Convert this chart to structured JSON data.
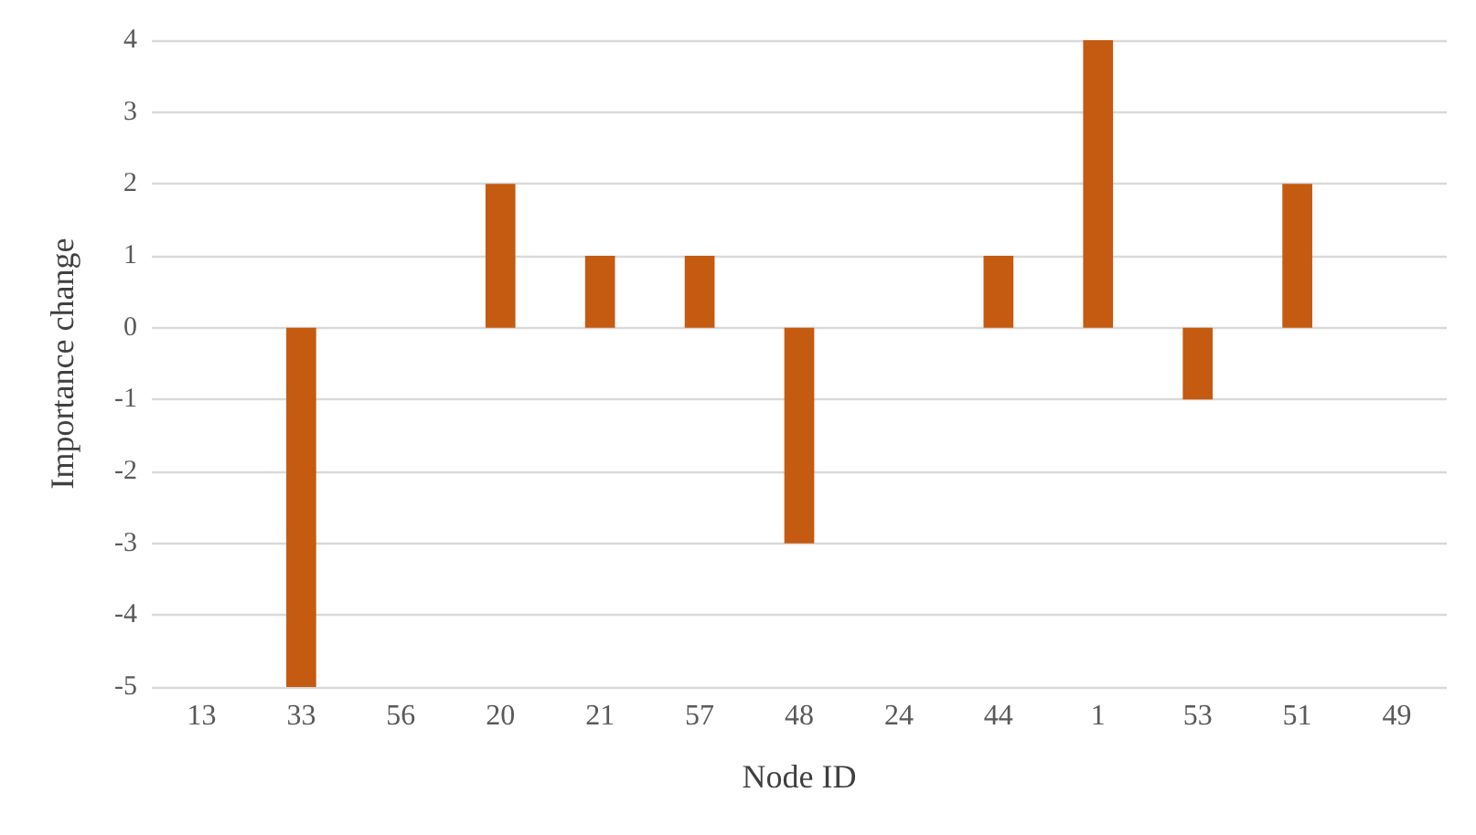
{
  "chart_data": {
    "type": "bar",
    "xlabel": "Node ID",
    "ylabel": "Importance change",
    "categories": [
      "13",
      "33",
      "56",
      "20",
      "21",
      "57",
      "48",
      "24",
      "44",
      "1",
      "53",
      "51",
      "49"
    ],
    "values": [
      0,
      -5,
      0,
      2,
      1,
      1,
      -3,
      0,
      1,
      4,
      -1,
      2,
      0
    ],
    "color": "#c55a11",
    "ylim": [
      -5,
      4
    ],
    "yticks": [
      -5,
      -4,
      -3,
      -2,
      -1,
      0,
      1,
      2,
      3,
      4
    ],
    "grid": "y"
  }
}
